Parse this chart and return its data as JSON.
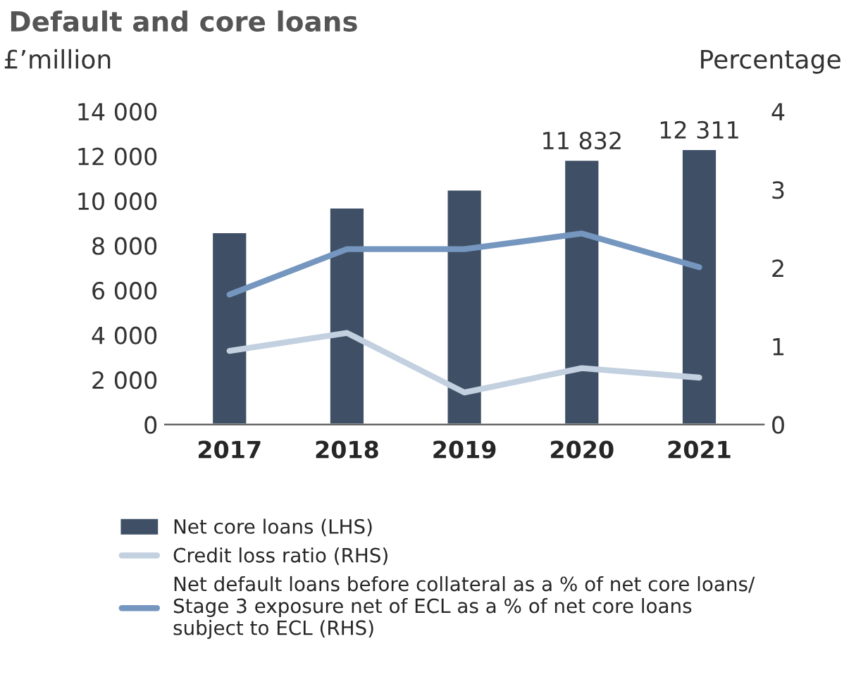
{
  "chart_data": {
    "type": "bar",
    "title": "Default and core loans",
    "ylabel": "£’million",
    "y2label": "Percentage",
    "categories": [
      "2017",
      "2018",
      "2019",
      "2020",
      "2021"
    ],
    "series": [
      {
        "name": "Net core loans (LHS)",
        "color": "#3f5066",
        "values": [
          8600,
          9700,
          10500,
          11832,
          12311
        ],
        "value_labels": [
          null,
          null,
          null,
          "11 832",
          "12 311"
        ]
      },
      {
        "name": "Credit loss ratio (RHS)",
        "type": "line",
        "axis": "y2",
        "color": "#c3d0e0",
        "values": [
          0.94,
          1.17,
          0.41,
          0.72,
          0.6
        ]
      },
      {
        "name": "Net default loans before collateral as a % of net core loans/\nStage 3 exposure net of ECL as a % of net core loans\nsubject to ECL (RHS)",
        "type": "line",
        "axis": "y2",
        "color": "#7596bf",
        "values": [
          1.66,
          2.24,
          2.24,
          2.44,
          2.01
        ]
      }
    ],
    "ylim": [
      0,
      14000
    ],
    "yticks": [
      0,
      {
        "value": 2000,
        "label": "2 000"
      },
      {
        "value": 4000,
        "label": "4 000"
      },
      {
        "value": 6000,
        "label": "6 000"
      },
      {
        "value": 8000,
        "label": "8 000"
      },
      {
        "value": 10000,
        "label": "10 000"
      },
      {
        "value": 12000,
        "label": "12 000"
      },
      {
        "value": 14000,
        "label": "14 000"
      }
    ],
    "y2lim": [
      0,
      4
    ],
    "y2ticks": [
      0,
      1,
      2,
      3,
      4
    ],
    "grid": false,
    "legend": "bottom",
    "marker": "none",
    "line_style": "solid"
  }
}
